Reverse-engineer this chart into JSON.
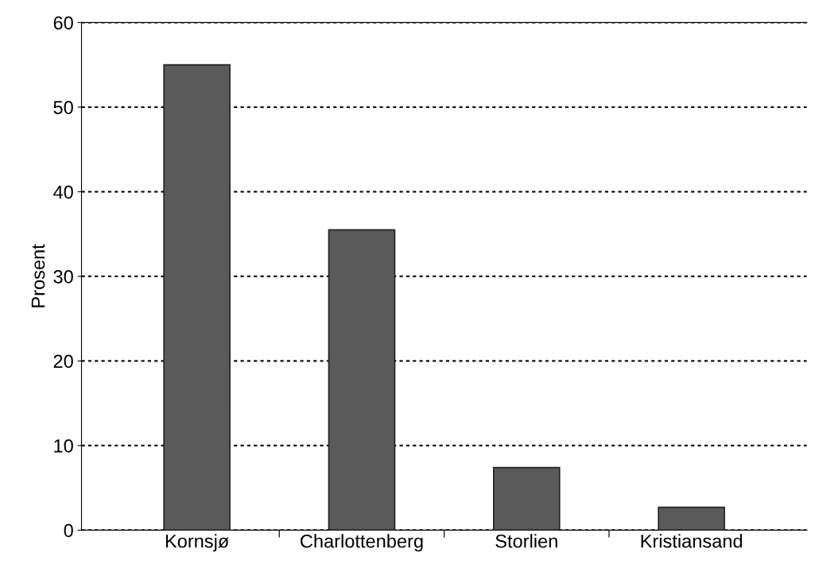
{
  "chart_data": {
    "type": "bar",
    "ylabel": "Prosent",
    "categories": [
      "Kornsjø",
      "Charlottenberg",
      "Storlien",
      "Kristiansand"
    ],
    "values": [
      55,
      35.5,
      7.4,
      2.7
    ],
    "color": "#5a5a5a",
    "ylim": [
      0,
      60
    ],
    "yticks": [
      0,
      10,
      20,
      30,
      40,
      50,
      60
    ],
    "grid": "y"
  }
}
